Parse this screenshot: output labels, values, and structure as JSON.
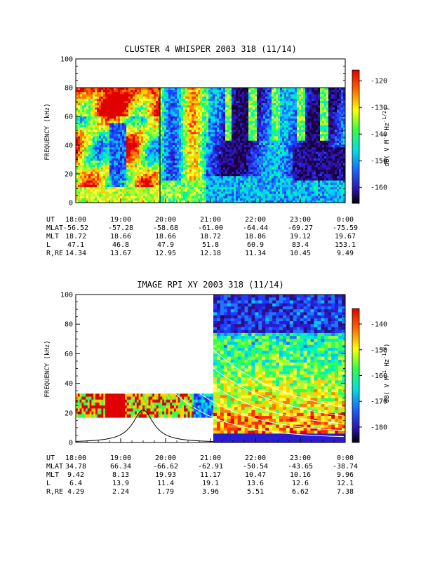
{
  "chart_data": [
    {
      "type": "heatmap",
      "title": "CLUSTER 4 WHISPER 2003 318 (11/14)",
      "ylabel": "FREQUENCY (kHz)",
      "ylim": [
        0,
        100
      ],
      "yticks": [
        "0",
        "20",
        "40",
        "60",
        "80",
        "100"
      ],
      "data_freq_max": 80,
      "colorbar": {
        "label": "dB( V M⁻¹ Hz⁻¹ᐟ²)",
        "label_parts": [
          "dB( V M",
          "-1",
          " Hz",
          "-1/2",
          ")"
        ],
        "range": [
          -166,
          -116
        ],
        "ticks": [
          "-120",
          "-130",
          "-140",
          "-150",
          "-160"
        ],
        "tick_values": [
          -120,
          -130,
          -140,
          -150,
          -160
        ]
      },
      "x_ticks": [
        "18:00",
        "19:00",
        "20:00",
        "21:00",
        "22:00",
        "23:00",
        "0:00"
      ],
      "ephemeris": [
        {
          "label": "UT",
          "values": [
            "18:00",
            "19:00",
            "20:00",
            "21:00",
            "22:00",
            "23:00",
            "0:00"
          ]
        },
        {
          "label": "MLAT",
          "values": [
            "-56.52",
            "-57.28",
            "-58.68",
            "-61.00",
            "-64.44",
            "-69.27",
            "-75.59"
          ]
        },
        {
          "label": "MLT",
          "values": [
            "18.72",
            "18.66",
            "18.66",
            "18.72",
            "18.86",
            "19.12",
            "19.67"
          ]
        },
        {
          "label": "L",
          "values": [
            "47.1",
            "46.8",
            "47.9",
            "51.8",
            "60.9",
            "83.4",
            "153.1"
          ]
        },
        {
          "label": "R,RE",
          "values": [
            "14.34",
            "13.67",
            "12.95",
            "12.18",
            "11.34",
            "10.45",
            "9.49"
          ]
        }
      ]
    },
    {
      "type": "heatmap",
      "title": "IMAGE RPI XY 2003 318 (11/14)",
      "ylabel": "FREQUENCY (kHz)",
      "ylim": [
        0,
        100
      ],
      "yticks": [
        "0",
        "20",
        "40",
        "60",
        "80",
        "100"
      ],
      "colorbar": {
        "label": "dB( V M⁻¹ Hz⁻¹ᐟ²)",
        "label_parts": [
          "dB( V M",
          "-1",
          " Hz",
          "-1/2",
          ")"
        ],
        "range": [
          -186,
          -134
        ],
        "ticks": [
          "-140",
          "-150",
          "-160",
          "-170",
          "-180"
        ],
        "tick_values": [
          -140,
          -150,
          -160,
          -170,
          -180
        ]
      },
      "x_ticks": [
        "18:00",
        "19:00",
        "20:00",
        "21:00",
        "22:00",
        "23:00",
        "0:00"
      ],
      "ephemeris": [
        {
          "label": "UT",
          "values": [
            "18:00",
            "19:00",
            "20:00",
            "21:00",
            "22:00",
            "23:00",
            "0:00"
          ]
        },
        {
          "label": "MLAT",
          "values": [
            "34.78",
            "66.34",
            "-66.62",
            "-62.91",
            "-50.54",
            "-43.65",
            "-38.74"
          ]
        },
        {
          "label": "MLT",
          "values": [
            "9.42",
            "8.13",
            "19.93",
            "11.17",
            "10.47",
            "10.16",
            "9.96"
          ]
        },
        {
          "label": "L",
          "values": [
            "6.4",
            "13.9",
            "11.4",
            "19.1",
            "13.6",
            "12.6",
            "12.1"
          ]
        },
        {
          "label": "R,RE",
          "values": [
            "4.29",
            "2.24",
            "1.79",
            "3.96",
            "5.51",
            "6.62",
            "7.38"
          ]
        }
      ],
      "overlay_curve_peak": {
        "time": "19:30",
        "freq_khz": 22
      }
    }
  ]
}
